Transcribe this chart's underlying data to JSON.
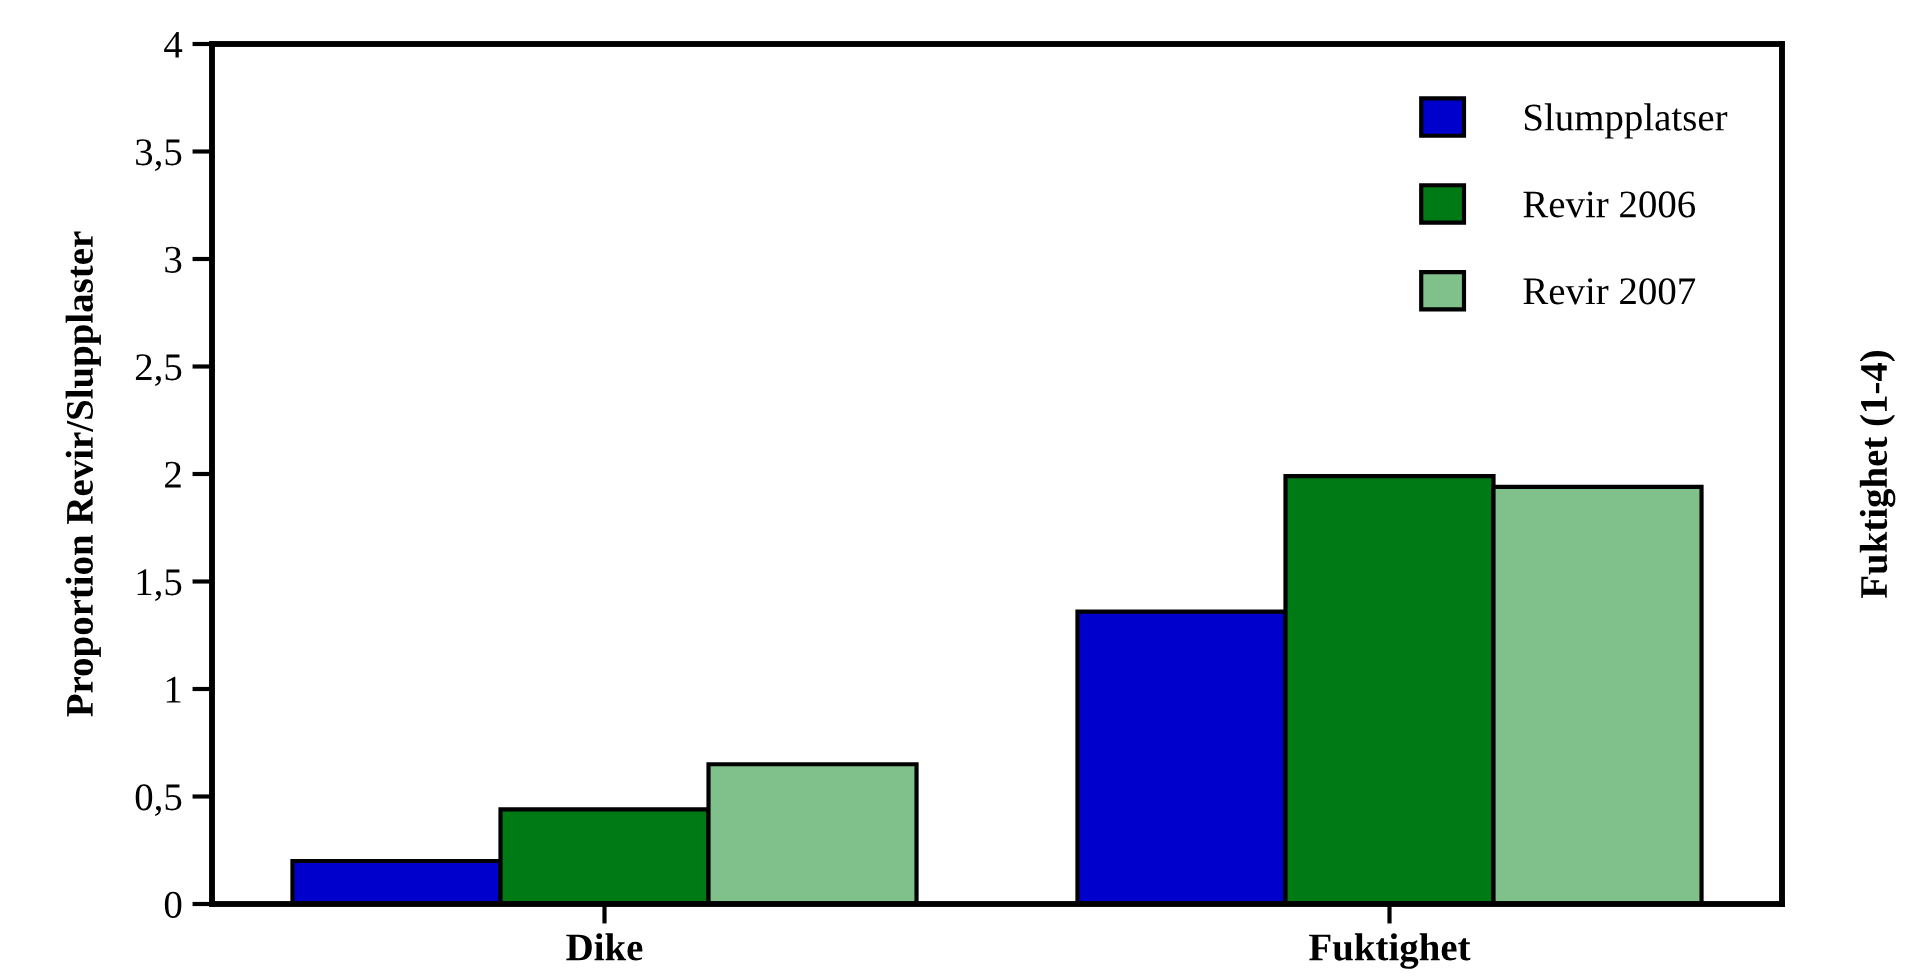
{
  "chart_data": {
    "type": "bar",
    "categories": [
      "Dike",
      "Fuktighet"
    ],
    "series": [
      {
        "name": "Slumpplatser",
        "color": "#0000cc",
        "values": [
          0.2,
          1.36
        ]
      },
      {
        "name": "Revir 2006",
        "color": "#007a14",
        "values": [
          0.44,
          1.99
        ]
      },
      {
        "name": "Revir 2007",
        "color": "#80c08a",
        "values": [
          0.65,
          1.94
        ]
      }
    ],
    "ylabel": "Proportion Revir/Slupplaster",
    "y2label": "Fuktighet (1-4)",
    "ylim": [
      0,
      4
    ],
    "yticks": [
      0,
      {
        "value": 0.5,
        "label": "0,5"
      },
      1,
      {
        "value": 1.5,
        "label": "1,5"
      },
      2,
      {
        "value": 2.5,
        "label": "2,5"
      },
      3,
      {
        "value": 3.5,
        "label": "3,5"
      },
      4
    ],
    "legend": "top right",
    "grid": false
  }
}
